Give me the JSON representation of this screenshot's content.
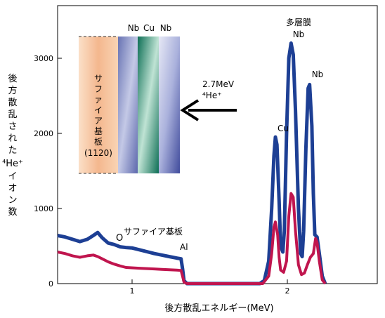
{
  "chart_data": {
    "type": "line",
    "title": "",
    "xlabel": "後方散乱エネルギー(MeV)",
    "ylabel": [
      "後",
      "方",
      "散",
      "乱",
      "さ",
      "れ",
      "た",
      "⁴He⁺",
      "イ",
      "オ",
      "ン",
      "数"
    ],
    "xlim": [
      0.5,
      2.65
    ],
    "ylim": [
      0,
      3700
    ],
    "x_ticks": [
      1,
      2
    ],
    "x_tick_labels": [
      "1",
      "2"
    ],
    "y_ticks": [
      0,
      1000,
      2000,
      3000
    ],
    "y_tick_labels": [
      "0",
      "1000",
      "2000",
      "3000"
    ],
    "grid": false,
    "legend": "none",
    "series": [
      {
        "color": "#1d3f94",
        "points": [
          [
            0.5,
            640
          ],
          [
            0.55,
            620
          ],
          [
            0.6,
            590
          ],
          [
            0.65,
            560
          ],
          [
            0.7,
            590
          ],
          [
            0.74,
            640
          ],
          [
            0.77,
            680
          ],
          [
            0.8,
            610
          ],
          [
            0.84,
            540
          ],
          [
            0.88,
            520
          ],
          [
            0.92,
            490
          ],
          [
            0.96,
            480
          ],
          [
            1.0,
            475
          ],
          [
            1.05,
            450
          ],
          [
            1.1,
            425
          ],
          [
            1.15,
            400
          ],
          [
            1.2,
            380
          ],
          [
            1.25,
            360
          ],
          [
            1.3,
            340
          ],
          [
            1.33,
            330
          ],
          [
            1.34,
            200
          ],
          [
            1.35,
            40
          ],
          [
            1.37,
            0
          ],
          [
            1.4,
            0
          ],
          [
            1.86,
            0
          ],
          [
            1.89,
            40
          ],
          [
            1.92,
            300
          ],
          [
            1.94,
            1000
          ],
          [
            1.955,
            1700
          ],
          [
            1.965,
            1950
          ],
          [
            1.975,
            1850
          ],
          [
            1.99,
            1100
          ],
          [
            2.0,
            500
          ],
          [
            2.015,
            420
          ],
          [
            2.025,
            700
          ],
          [
            2.04,
            2000
          ],
          [
            2.055,
            3000
          ],
          [
            2.07,
            3200
          ],
          [
            2.085,
            3050
          ],
          [
            2.1,
            2300
          ],
          [
            2.12,
            1000
          ],
          [
            2.135,
            400
          ],
          [
            2.145,
            360
          ],
          [
            2.155,
            700
          ],
          [
            2.17,
            1800
          ],
          [
            2.185,
            2600
          ],
          [
            2.195,
            2650
          ],
          [
            2.21,
            2100
          ],
          [
            2.22,
            1200
          ],
          [
            2.23,
            650
          ],
          [
            2.245,
            620
          ],
          [
            2.26,
            400
          ],
          [
            2.28,
            100
          ],
          [
            2.3,
            0
          ]
        ]
      },
      {
        "color": "#c0154e",
        "points": [
          [
            0.5,
            420
          ],
          [
            0.55,
            400
          ],
          [
            0.6,
            370
          ],
          [
            0.65,
            350
          ],
          [
            0.7,
            370
          ],
          [
            0.74,
            380
          ],
          [
            0.77,
            360
          ],
          [
            0.8,
            330
          ],
          [
            0.84,
            290
          ],
          [
            0.88,
            260
          ],
          [
            0.92,
            235
          ],
          [
            0.96,
            215
          ],
          [
            1.0,
            210
          ],
          [
            1.05,
            205
          ],
          [
            1.1,
            200
          ],
          [
            1.15,
            195
          ],
          [
            1.2,
            190
          ],
          [
            1.25,
            185
          ],
          [
            1.3,
            180
          ],
          [
            1.33,
            175
          ],
          [
            1.34,
            100
          ],
          [
            1.35,
            20
          ],
          [
            1.37,
            0
          ],
          [
            1.4,
            0
          ],
          [
            1.88,
            0
          ],
          [
            1.92,
            100
          ],
          [
            1.94,
            400
          ],
          [
            1.955,
            750
          ],
          [
            1.965,
            820
          ],
          [
            1.98,
            650
          ],
          [
            1.99,
            350
          ],
          [
            2.0,
            180
          ],
          [
            2.02,
            150
          ],
          [
            2.04,
            300
          ],
          [
            2.055,
            900
          ],
          [
            2.07,
            1200
          ],
          [
            2.085,
            1150
          ],
          [
            2.1,
            700
          ],
          [
            2.12,
            250
          ],
          [
            2.14,
            120
          ],
          [
            2.16,
            140
          ],
          [
            2.18,
            250
          ],
          [
            2.2,
            350
          ],
          [
            2.22,
            400
          ],
          [
            2.235,
            600
          ],
          [
            2.245,
            550
          ],
          [
            2.26,
            300
          ],
          [
            2.28,
            50
          ],
          [
            2.3,
            0
          ]
        ]
      }
    ],
    "annotations": {
      "peak_label_cu": "Cu",
      "peak_label_nb_1": "多層膜",
      "peak_label_nb_2": "Nb",
      "peak_label_nb_3": "Nb",
      "substrate_o_symbol": "O",
      "substrate_label": "サファイア基板",
      "substrate_al": "Al",
      "beam_energy": "2.7MeV",
      "beam_ion": "⁴He⁺",
      "layer_labels": [
        "Nb",
        "Cu",
        "Nb"
      ],
      "substrate_name_lines": [
        "サ",
        "フ",
        "ァ",
        "イ",
        "ア",
        "基",
        "板"
      ],
      "substrate_orientation": "(1120)"
    },
    "colors": {
      "series_blue": "#1d3f94",
      "series_red": "#c0154e",
      "substrate_fill": "#f6c19a",
      "nb_layer": "#8490c6",
      "cu_layer": "#1b8a6d",
      "arrow": "#000000"
    }
  }
}
